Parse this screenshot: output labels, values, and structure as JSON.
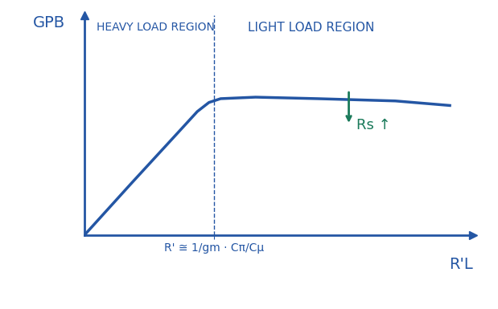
{
  "chart_data": {
    "type": "line",
    "y_label": "GPB",
    "x_label": "R'L",
    "x": [
      0,
      0.6,
      1.2,
      1.45,
      1.6,
      1.75,
      2.2,
      3.0,
      4.0,
      4.7
    ],
    "values": [
      0,
      0.68,
      1.35,
      1.63,
      1.75,
      1.8,
      1.82,
      1.8,
      1.77,
      1.71
    ],
    "color": "#2456a4",
    "xlim": [
      0,
      5.0
    ],
    "ylim": [
      0,
      2.9
    ],
    "xticks": [
      {
        "value": 1.67,
        "label": "R' ≅ 1/gm · Cπ/Cμ"
      }
    ],
    "yticks": [],
    "annotations": [
      {
        "text": "HEAVY LOAD REGION"
      },
      {
        "text": "LIGHT LOAD REGION"
      },
      {
        "text": "Rs ↑"
      }
    ]
  }
}
